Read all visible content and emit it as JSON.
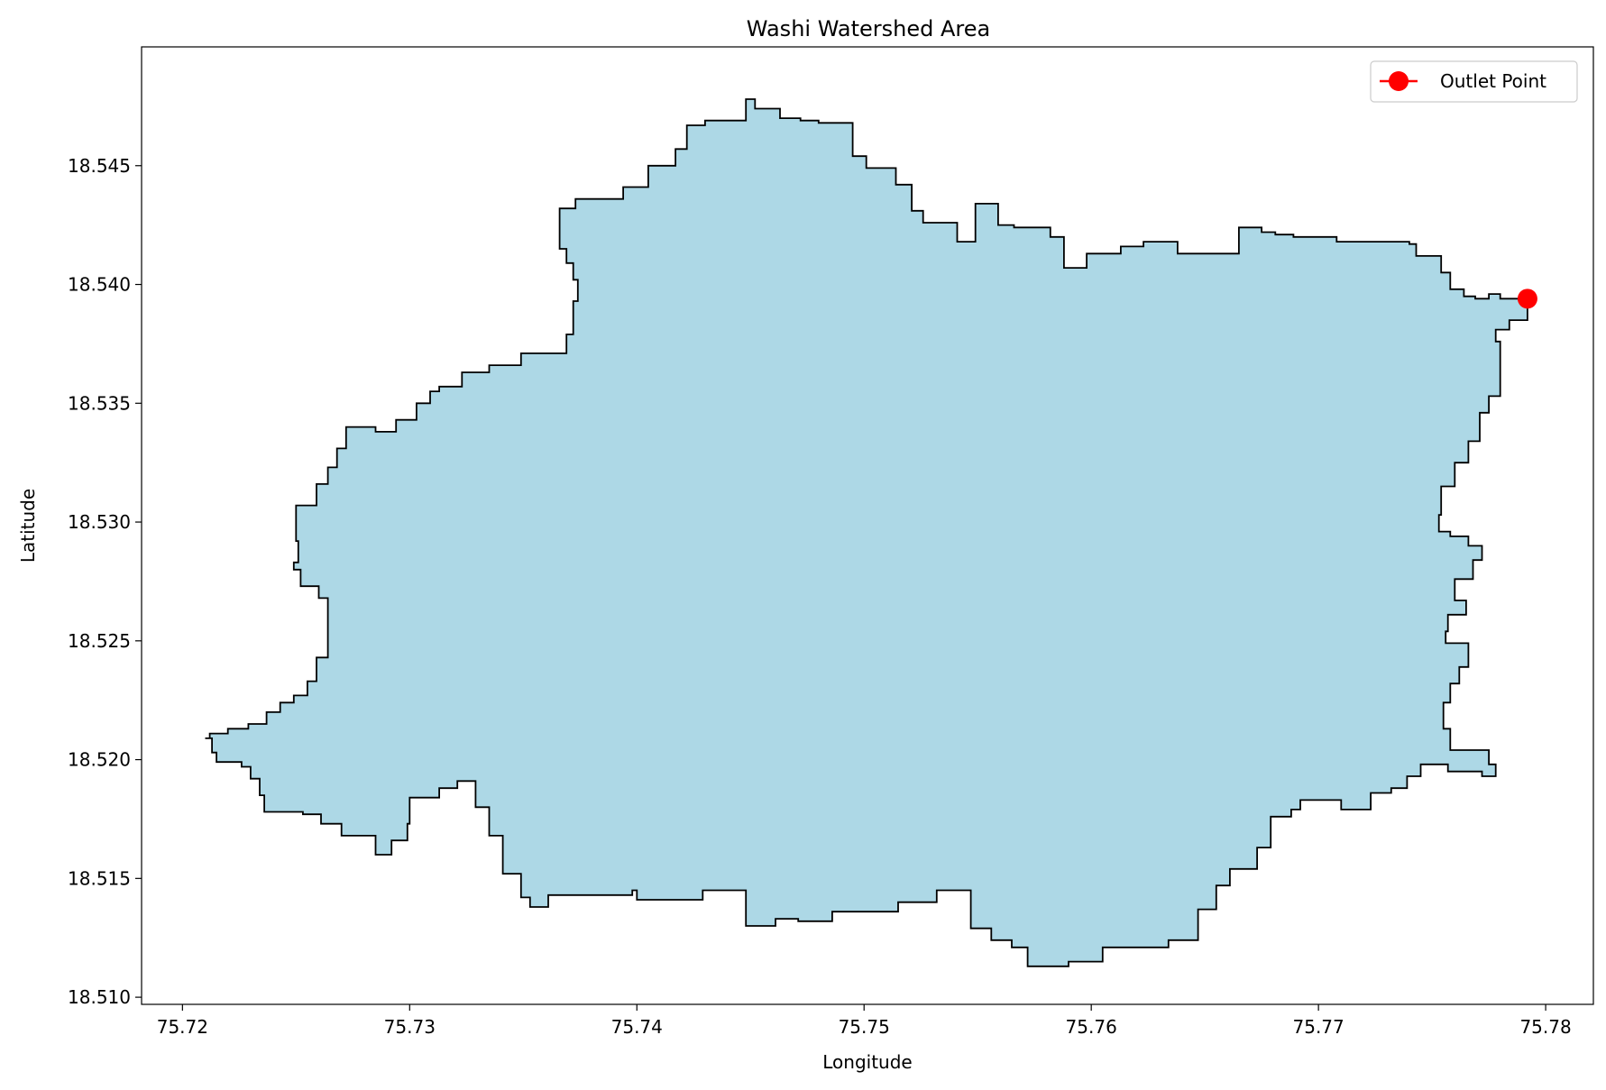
{
  "chart_data": {
    "type": "map",
    "title": "Washi Watershed Area",
    "xlabel": "Longitude",
    "ylabel": "Latitude",
    "xlim": [
      75.7182,
      75.7821
    ],
    "ylim": [
      18.5097,
      18.55
    ],
    "x_ticks": [
      75.72,
      75.73,
      75.74,
      75.75,
      75.76,
      75.77,
      75.78
    ],
    "x_tick_labels": [
      "75.72",
      "75.73",
      "75.74",
      "75.75",
      "75.76",
      "75.77",
      "75.78"
    ],
    "y_ticks": [
      18.51,
      18.515,
      18.52,
      18.525,
      18.53,
      18.535,
      18.54,
      18.545
    ],
    "y_tick_labels": [
      "18.510",
      "18.515",
      "18.520",
      "18.525",
      "18.530",
      "18.535",
      "18.540",
      "18.545"
    ],
    "grid": false,
    "legend_position": "top-right",
    "colors": {
      "fill": "#add8e6",
      "outline": "#000000",
      "outlet": "#ff0000"
    },
    "series": [
      {
        "name": "Outlet Point",
        "type": "point",
        "x": [
          75.7792
        ],
        "y": [
          18.5394
        ]
      }
    ],
    "watershed_boundary": [
      [
        75.721,
        18.5209
      ],
      [
        75.7213,
        18.5207
      ],
      [
        75.7213,
        18.5203
      ],
      [
        75.7215,
        18.5199
      ],
      [
        75.7226,
        18.5197
      ],
      [
        75.723,
        18.5192
      ],
      [
        75.7234,
        18.5185
      ],
      [
        75.7236,
        18.5178
      ],
      [
        75.7253,
        18.5177
      ],
      [
        75.7261,
        18.5173
      ],
      [
        75.727,
        18.5168
      ],
      [
        75.7285,
        18.516
      ],
      [
        75.7292,
        18.5166
      ],
      [
        75.7299,
        18.5173
      ],
      [
        75.73,
        18.5184
      ],
      [
        75.7313,
        18.5188
      ],
      [
        75.7321,
        18.5191
      ],
      [
        75.7329,
        18.518
      ],
      [
        75.7335,
        18.5168
      ],
      [
        75.7341,
        18.5152
      ],
      [
        75.7349,
        18.5142
      ],
      [
        75.7353,
        18.5138
      ],
      [
        75.7361,
        18.5143
      ],
      [
        75.7398,
        18.5145
      ],
      [
        75.74,
        18.5141
      ],
      [
        75.7429,
        18.5145
      ],
      [
        75.7446,
        18.5145
      ],
      [
        75.7448,
        18.513
      ],
      [
        75.7461,
        18.5133
      ],
      [
        75.7471,
        18.5132
      ],
      [
        75.7486,
        18.5136
      ],
      [
        75.7515,
        18.514
      ],
      [
        75.7532,
        18.5145
      ],
      [
        75.7547,
        18.5129
      ],
      [
        75.7556,
        18.5124
      ],
      [
        75.7565,
        18.5121
      ],
      [
        75.7572,
        18.5113
      ],
      [
        75.759,
        18.5115
      ],
      [
        75.7605,
        18.5121
      ],
      [
        75.7624,
        18.5121
      ],
      [
        75.7634,
        18.5124
      ],
      [
        75.7647,
        18.5137
      ],
      [
        75.7655,
        18.5147
      ],
      [
        75.7661,
        18.5154
      ],
      [
        75.7673,
        18.5163
      ],
      [
        75.7679,
        18.5176
      ],
      [
        75.7688,
        18.5179
      ],
      [
        75.7692,
        18.5183
      ],
      [
        75.771,
        18.5179
      ],
      [
        75.7723,
        18.5186
      ],
      [
        75.7732,
        18.5188
      ],
      [
        75.7739,
        18.5193
      ],
      [
        75.7745,
        18.5198
      ],
      [
        75.7757,
        18.5195
      ],
      [
        75.7772,
        18.5193
      ],
      [
        75.7778,
        18.5198
      ],
      [
        75.7775,
        18.5204
      ],
      [
        75.7758,
        18.5213
      ],
      [
        75.7755,
        18.5224
      ],
      [
        75.7758,
        18.5232
      ],
      [
        75.7762,
        18.5239
      ],
      [
        75.7766,
        18.5249
      ],
      [
        75.7756,
        18.5254
      ],
      [
        75.7757,
        18.5261
      ],
      [
        75.7765,
        18.5267
      ],
      [
        75.776,
        18.5276
      ],
      [
        75.7768,
        18.5284
      ],
      [
        75.7772,
        18.529
      ],
      [
        75.7766,
        18.5294
      ],
      [
        75.7758,
        18.5296
      ],
      [
        75.7753,
        18.5303
      ],
      [
        75.7754,
        18.5315
      ],
      [
        75.776,
        18.5325
      ],
      [
        75.7766,
        18.5334
      ],
      [
        75.7771,
        18.5346
      ],
      [
        75.7775,
        18.5353
      ],
      [
        75.778,
        18.5367
      ],
      [
        75.778,
        18.5376
      ],
      [
        75.7778,
        18.5381
      ],
      [
        75.7784,
        18.5385
      ],
      [
        75.7792,
        18.5394
      ],
      [
        75.778,
        18.5396
      ],
      [
        75.7775,
        18.5394
      ],
      [
        75.7769,
        18.5395
      ],
      [
        75.7764,
        18.5398
      ],
      [
        75.7758,
        18.5405
      ],
      [
        75.7754,
        18.5412
      ],
      [
        75.7743,
        18.5417
      ],
      [
        75.774,
        18.5418
      ],
      [
        75.7722,
        18.5418
      ],
      [
        75.7708,
        18.542
      ],
      [
        75.7689,
        18.5421
      ],
      [
        75.7681,
        18.5422
      ],
      [
        75.7675,
        18.5424
      ],
      [
        75.7665,
        18.5413
      ],
      [
        75.7651,
        18.5413
      ],
      [
        75.7638,
        18.5418
      ],
      [
        75.7623,
        18.5416
      ],
      [
        75.7613,
        18.5413
      ],
      [
        75.7598,
        18.5407
      ],
      [
        75.7588,
        18.542
      ],
      [
        75.7582,
        18.5424
      ],
      [
        75.7566,
        18.5425
      ],
      [
        75.7559,
        18.5434
      ],
      [
        75.7549,
        18.5418
      ],
      [
        75.7541,
        18.5426
      ],
      [
        75.7526,
        18.5431
      ],
      [
        75.7521,
        18.5442
      ],
      [
        75.7514,
        18.5449
      ],
      [
        75.7501,
        18.5454
      ],
      [
        75.7495,
        18.5468
      ],
      [
        75.748,
        18.5469
      ],
      [
        75.7472,
        18.547
      ],
      [
        75.7463,
        18.5474
      ],
      [
        75.7452,
        18.5478
      ],
      [
        75.7448,
        18.5469
      ],
      [
        75.743,
        18.5467
      ],
      [
        75.7422,
        18.5457
      ],
      [
        75.7417,
        18.545
      ],
      [
        75.7405,
        18.5441
      ],
      [
        75.7394,
        18.5436
      ],
      [
        75.7373,
        18.5432
      ],
      [
        75.7366,
        18.5426
      ],
      [
        75.7366,
        18.5415
      ],
      [
        75.7369,
        18.5409
      ],
      [
        75.7372,
        18.5402
      ],
      [
        75.7374,
        18.5393
      ],
      [
        75.7372,
        18.5379
      ],
      [
        75.7369,
        18.5371
      ],
      [
        75.736,
        18.5371
      ],
      [
        75.7349,
        18.5366
      ],
      [
        75.7335,
        18.5363
      ],
      [
        75.7323,
        18.5357
      ],
      [
        75.7313,
        18.5355
      ],
      [
        75.7309,
        18.535
      ],
      [
        75.7303,
        18.5343
      ],
      [
        75.7294,
        18.5338
      ],
      [
        75.7285,
        18.534
      ],
      [
        75.7277,
        18.534
      ],
      [
        75.7272,
        18.5331
      ],
      [
        75.7268,
        18.5323
      ],
      [
        75.7264,
        18.5316
      ],
      [
        75.7259,
        18.5307
      ],
      [
        75.7251,
        18.5307
      ],
      [
        75.725,
        18.5292
      ],
      [
        75.7251,
        18.5283
      ],
      [
        75.7249,
        18.528
      ],
      [
        75.7252,
        18.5273
      ],
      [
        75.726,
        18.5268
      ],
      [
        75.7264,
        18.5268
      ],
      [
        75.7264,
        18.5243
      ],
      [
        75.7259,
        18.5233
      ],
      [
        75.7255,
        18.5227
      ],
      [
        75.7249,
        18.5224
      ],
      [
        75.7243,
        18.522
      ],
      [
        75.7237,
        18.5215
      ],
      [
        75.7229,
        18.5213
      ],
      [
        75.722,
        18.5211
      ],
      [
        75.7212,
        18.5209
      ]
    ]
  }
}
